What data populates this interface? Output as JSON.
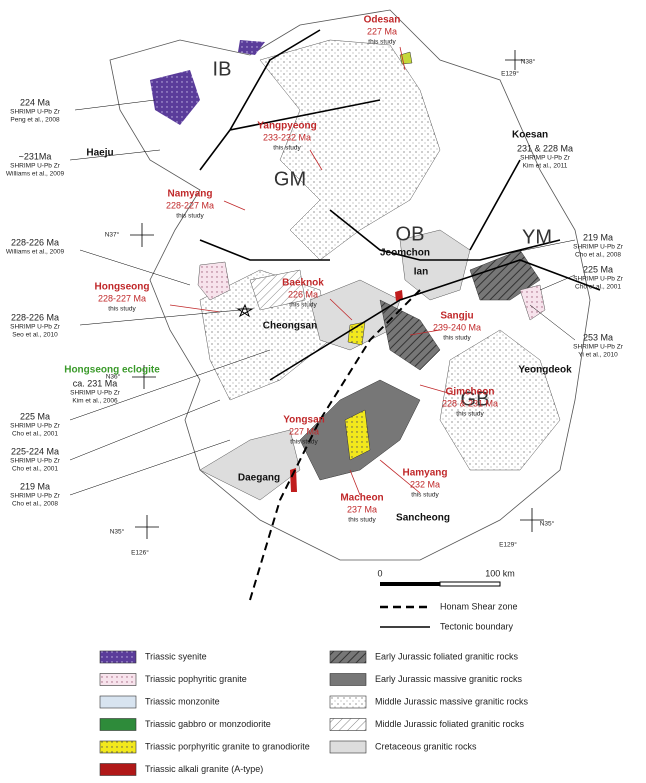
{
  "blocks": [
    "IB",
    "GM",
    "OB",
    "YM",
    "GB"
  ],
  "coordinates": [
    "N38°",
    "E129°",
    "N37°",
    "N36°",
    "N35°",
    "E126°",
    "N35°",
    "E129°"
  ],
  "localities": [
    "Haeju",
    "Koesan",
    "Jeomchon",
    "Ian",
    "Cheongsan",
    "Daegang",
    "Sancheong",
    "Yeongdeok"
  ],
  "samples": [
    {
      "name": "Odesan",
      "age": "227 Ma",
      "note": "this study"
    },
    {
      "name": "Yangpyeong",
      "age": "233-232 Ma",
      "note": "this study"
    },
    {
      "name": "Namyang",
      "age": "228-227 Ma",
      "note": "this study"
    },
    {
      "name": "Hongseong",
      "age": "228-227 Ma",
      "note": "this study"
    },
    {
      "name": "Baeknok",
      "age": "226 Ma",
      "note": "this study"
    },
    {
      "name": "Yongsan",
      "age": "227 Ma",
      "note": "this study"
    },
    {
      "name": "Sangju",
      "age": "239-240 Ma",
      "note": "this study"
    },
    {
      "name": "Gimcheon",
      "age": "228 & 231 Ma",
      "note": "this study"
    },
    {
      "name": "Hamyang",
      "age": "232 Ma",
      "note": "this study"
    },
    {
      "name": "Macheon",
      "age": "237 Ma",
      "note": "this study"
    }
  ],
  "eclogite": {
    "name": "Hongseong eclogite",
    "age": "ca. 231 Ma",
    "method": "SHRIMP U-Pb Zr",
    "ref": "Kim et al., 2006"
  },
  "published": [
    {
      "age": "224 Ma",
      "method": "SHRIMP U-Pb Zr",
      "ref": "Peng et al., 2008"
    },
    {
      "age": "~231Ma",
      "method": "SHRIMP U-Pb Zr",
      "ref": "Williams et al., 2009"
    },
    {
      "age": "228-226 Ma",
      "ref": "Williams et al., 2009"
    },
    {
      "age": "228-226 Ma",
      "method": "SHRIMP U-Pb Zr",
      "ref": "Seo et al., 2010"
    },
    {
      "age": "225 Ma",
      "method": "SHRIMP U-Pb Zr",
      "ref": "Cho et al., 2001"
    },
    {
      "age": "225-224 Ma",
      "method": "SHRIMP U-Pb Zr",
      "ref": "Cho et al., 2001"
    },
    {
      "age": "219 Ma",
      "method": "SHRIMP U-Pb Zr",
      "ref": "Cho et al., 2008"
    },
    {
      "age": "231 & 228 Ma",
      "method": "SHRIMP U-Pb Zr",
      "ref": "Kim et al., 2011"
    },
    {
      "age": "219 Ma",
      "method": "SHRIMP U-Pb Zr",
      "ref": "Cho et al., 2008"
    },
    {
      "age": "225 Ma",
      "method": "SHRIMP U-Pb Zr",
      "ref": "Cho et al., 2001"
    },
    {
      "age": "253 Ma",
      "method": "SHRIMP U-Pb Zr",
      "ref": "Yi et al., 2010"
    }
  ],
  "scale": {
    "start": "0",
    "end": "100 km"
  },
  "legend": {
    "lines": [
      "Honam Shear zone",
      "Tectonic boundary"
    ],
    "units": [
      "Triassic syenite",
      "Triassic pophyritic granite",
      "Triassic monzonite",
      "Triassic gabbro or monzodiorite",
      "Triassic porphyritic granite to granodiorite",
      "Triassic alkali granite (A-type)",
      "Early Jurassic foliated granitic rocks",
      "Early Jurassic massive granitic rocks",
      "Middle Jurassic massive granitic rocks",
      "Middle Jurassic foliated granitic rocks",
      "Cretaceous granitic rocks"
    ]
  }
}
